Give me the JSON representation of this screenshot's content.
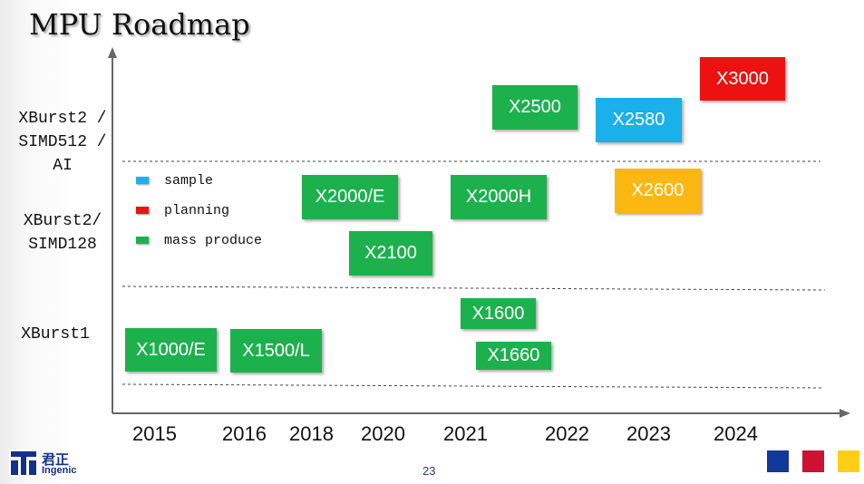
{
  "slide": {
    "title": "MPU Roadmap",
    "page_number": "23",
    "logo": {
      "chinese": "君正",
      "english": "Ingenic"
    }
  },
  "y_categories": [
    {
      "lines": [
        "XBurst2 /",
        "SIMD512 /",
        "AI"
      ]
    },
    {
      "lines": [
        "XBurst2/",
        "SIMD128"
      ]
    },
    {
      "lines": [
        "XBurst1"
      ]
    }
  ],
  "years": [
    "2015",
    "2016",
    "2018",
    "2020",
    "2021",
    "2022",
    "2023",
    "2024"
  ],
  "legend": [
    {
      "label": "sample",
      "color": "#1ab1ea"
    },
    {
      "label": "planning",
      "color": "#ee1111"
    },
    {
      "label": "mass produce",
      "color": "#1db14e"
    }
  ],
  "chips": [
    {
      "name": "X1000/E",
      "status": "mass produce",
      "tier": "XBurst1",
      "year": "2015"
    },
    {
      "name": "X1500/L",
      "status": "mass produce",
      "tier": "XBurst1",
      "year": "2016"
    },
    {
      "name": "X1600",
      "status": "mass produce",
      "tier": "XBurst1",
      "year": "2021"
    },
    {
      "name": "X1660",
      "status": "mass produce",
      "tier": "XBurst1",
      "year": "2021"
    },
    {
      "name": "X2000/E",
      "status": "mass produce",
      "tier": "XBurst2/SIMD128",
      "year": "2018"
    },
    {
      "name": "X2100",
      "status": "mass produce",
      "tier": "XBurst2/SIMD128",
      "year": "2020"
    },
    {
      "name": "X2000H",
      "status": "mass produce",
      "tier": "XBurst2/SIMD128",
      "year": "2021"
    },
    {
      "name": "X2600",
      "status": "planning",
      "tier": "XBurst2/SIMD128",
      "year": "2023"
    },
    {
      "name": "X2500",
      "status": "mass produce",
      "tier": "XBurst2 / SIMD512 / AI",
      "year": "2022"
    },
    {
      "name": "X2580",
      "status": "sample",
      "tier": "XBurst2 / SIMD512 / AI",
      "year": "2023"
    },
    {
      "name": "X3000",
      "status": "planning",
      "tier": "XBurst2 / SIMD512 / AI",
      "year": "2024"
    }
  ],
  "brand_squares": [
    "#12389a",
    "#cc1133",
    "#fccf16"
  ]
}
